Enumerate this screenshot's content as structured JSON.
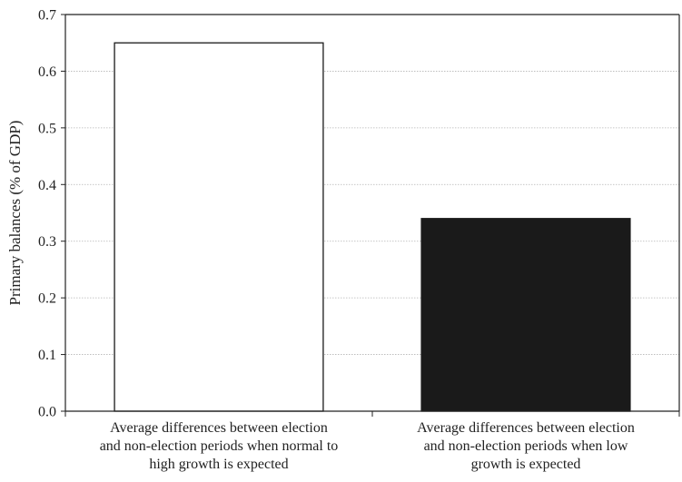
{
  "chart_data": {
    "type": "bar",
    "title": "",
    "xlabel": "",
    "ylabel": "Primary balances (% of GDP)",
    "ylim": [
      0,
      0.7
    ],
    "yticks": [
      "0.0",
      "0.1",
      "0.2",
      "0.3",
      "0.4",
      "0.5",
      "0.6",
      "0.7"
    ],
    "grid": true,
    "legend": "none",
    "categories": [
      [
        "Average differences between election",
        "and non-election periods when normal to",
        "high growth is expected"
      ],
      [
        "Average differences between election",
        "and non-election periods when low",
        "growth is expected"
      ]
    ],
    "values": [
      0.65,
      0.34
    ],
    "colors": [
      "#ffffff",
      "#1a1a1a"
    ],
    "bar_edge_color": "#1a1a1a"
  }
}
